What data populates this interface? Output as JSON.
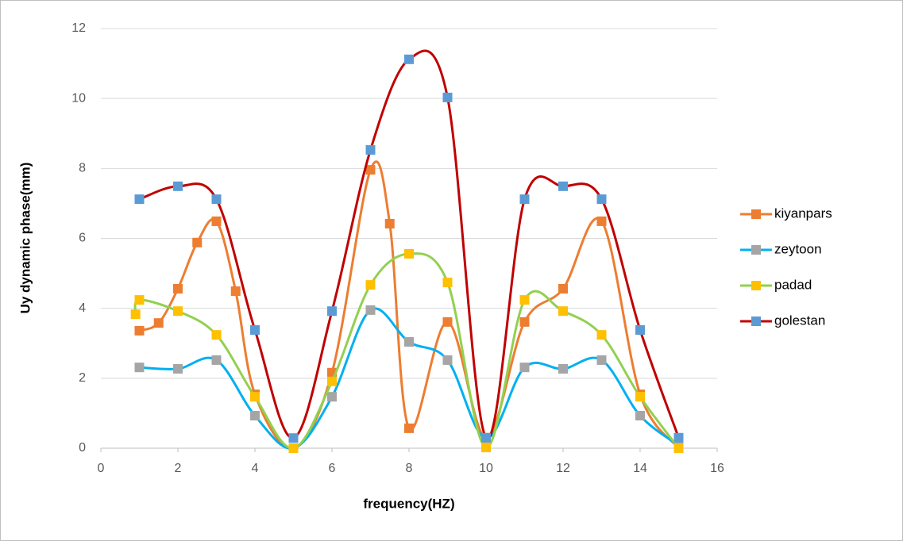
{
  "chart_data": {
    "type": "line",
    "smooth": true,
    "x_label": "frequency(HZ)",
    "y_label": "Uy dynamic phase(mm)",
    "xlim": [
      0,
      16
    ],
    "xticks": [
      0,
      2,
      4,
      6,
      8,
      10,
      12,
      14,
      16
    ],
    "ylim": [
      0,
      12
    ],
    "yticks": [
      0,
      2,
      4,
      6,
      8,
      10,
      12
    ],
    "grid": true,
    "legend": "right",
    "series": [
      {
        "name": "kiyanpars",
        "color": "#ED7D31",
        "marker_color": "#ED7D31",
        "x": [
          1,
          1.5,
          2,
          2.5,
          3,
          3.5,
          4,
          5,
          6,
          7,
          7.5,
          8,
          9,
          10,
          11,
          12,
          13,
          14,
          15
        ],
        "values": [
          3.36,
          3.58,
          4.56,
          5.88,
          6.49,
          4.49,
          1.54,
          0,
          2.16,
          7.96,
          6.42,
          0.57,
          3.61,
          0.3,
          3.61,
          4.56,
          6.49,
          1.54,
          0
        ]
      },
      {
        "name": "zeytoon",
        "color": "#00B0F0",
        "marker_color": "#A5A5A5",
        "x": [
          1,
          2,
          3,
          4,
          5,
          6,
          7,
          8,
          9,
          10,
          11,
          12,
          13,
          14,
          15
        ],
        "values": [
          2.31,
          2.27,
          2.52,
          0.93,
          0,
          1.47,
          3.95,
          3.04,
          2.52,
          0.28,
          2.31,
          2.27,
          2.52,
          0.93,
          0.08
        ]
      },
      {
        "name": "padad",
        "color": "#92D050",
        "marker_color": "#FFC000",
        "x": [
          0.9,
          1,
          2,
          3,
          4,
          5,
          6,
          7,
          8,
          9,
          10,
          11,
          12,
          13,
          14,
          15
        ],
        "values": [
          3.83,
          4.24,
          3.92,
          3.24,
          1.47,
          0,
          1.91,
          4.67,
          5.56,
          4.74,
          0.02,
          4.24,
          3.92,
          3.24,
          1.47,
          0
        ]
      },
      {
        "name": "golestan",
        "color": "#C00000",
        "marker_color": "#5B9BD5",
        "x": [
          1,
          2,
          3,
          4,
          5,
          6,
          7,
          8,
          9,
          10,
          11,
          12,
          13,
          14,
          15
        ],
        "values": [
          7.12,
          7.49,
          7.12,
          3.38,
          0.29,
          3.92,
          8.53,
          11.12,
          10.03,
          0.3,
          7.12,
          7.49,
          7.12,
          3.38,
          0.3
        ]
      }
    ]
  }
}
